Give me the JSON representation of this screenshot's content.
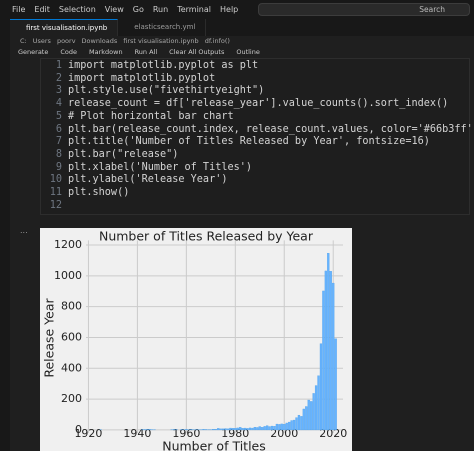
{
  "menu": [
    "File",
    "Edit",
    "Selection",
    "View",
    "Go",
    "Run",
    "Terminal",
    "Help"
  ],
  "search": "Search",
  "tabs": [
    "first visualisation.ipynb",
    "elasticsearch.yml"
  ],
  "breadcrumb": [
    "C:",
    "Users",
    "poorv",
    "Downloads",
    "first visualisation.ipynb",
    "df.info()"
  ],
  "toolbar": [
    "Generate",
    "Code",
    "Markdown",
    "Run All",
    "Clear All Outputs",
    "Outline"
  ],
  "code": {
    "line_numbers": [
      1,
      2,
      3,
      4,
      5,
      6,
      7,
      8,
      9,
      10,
      11,
      12
    ],
    "lines": [
      "import matplotlib.pyplot as plt",
      "import matplotlib.pyplot",
      "plt.style.use(\"fivethirtyeight\")",
      "release_count = df['release_year'].value_counts().sort_index()",
      "# Plot horizontal bar chart",
      "plt.bar(release_count.index, release_count.values, color='#66b3ff')",
      "plt.title('Number of Titles Released by Year', fontsize=16)",
      "plt.bar(\"release\")",
      "plt.xlabel('Number of Titles')",
      "plt.ylabel('Release Year')",
      "plt.show()"
    ]
  },
  "output_marker": "...",
  "chart_data": {
    "type": "bar",
    "title": "Number of Titles Released by Year",
    "xlabel": "Number of Titles",
    "ylabel": "Release Year",
    "x": [
      1925,
      1942,
      1943,
      1944,
      1945,
      1946,
      1947,
      1954,
      1955,
      1956,
      1958,
      1959,
      1960,
      1961,
      1962,
      1963,
      1964,
      1965,
      1966,
      1967,
      1968,
      1969,
      1970,
      1971,
      1972,
      1973,
      1974,
      1975,
      1976,
      1977,
      1978,
      1979,
      1980,
      1981,
      1982,
      1983,
      1984,
      1985,
      1986,
      1987,
      1988,
      1989,
      1990,
      1991,
      1992,
      1993,
      1994,
      1995,
      1996,
      1997,
      1998,
      1999,
      2000,
      2001,
      2002,
      2003,
      2004,
      2005,
      2006,
      2007,
      2008,
      2009,
      2010,
      2011,
      2012,
      2013,
      2014,
      2015,
      2016,
      2017,
      2018,
      2019,
      2020,
      2021
    ],
    "values": [
      1,
      2,
      3,
      3,
      4,
      2,
      1,
      2,
      3,
      2,
      3,
      1,
      4,
      1,
      3,
      2,
      2,
      2,
      1,
      5,
      3,
      2,
      2,
      5,
      5,
      10,
      7,
      7,
      9,
      7,
      12,
      11,
      11,
      13,
      17,
      11,
      12,
      10,
      13,
      12,
      18,
      16,
      22,
      17,
      23,
      28,
      22,
      25,
      24,
      38,
      36,
      39,
      37,
      45,
      51,
      61,
      64,
      80,
      96,
      88,
      136,
      152,
      194,
      185,
      237,
      288,
      352,
      560,
      902,
      1032,
      1147,
      1030,
      953,
      592
    ],
    "color": "#66b3ff",
    "xlim": [
      1919,
      2024
    ],
    "ylim": [
      -20,
      1230
    ],
    "xticks": [
      1920,
      1940,
      1960,
      1980,
      2000,
      2020
    ],
    "yticks": [
      0,
      200,
      400,
      600,
      800,
      1000,
      1200
    ],
    "grid": true
  }
}
